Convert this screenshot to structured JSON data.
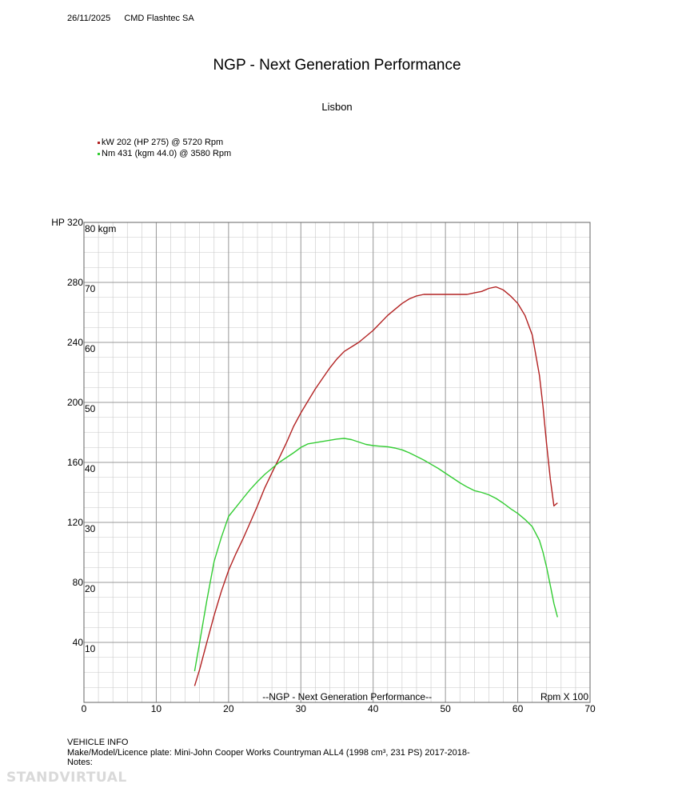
{
  "header": {
    "date": "26/11/2025",
    "company": "CMD Flashtec SA"
  },
  "colors": {
    "power": "#b22222",
    "torque": "#33cc33",
    "grid_major": "#999999",
    "grid_minor": "#c8c8c8"
  },
  "chart_data": {
    "type": "line",
    "title": "NGP - Next Generation Performance",
    "subtitle": "Lisbon",
    "legend": [
      {
        "text": "kW 202 (HP 275) @ 5720 Rpm",
        "color": "#b22222"
      },
      {
        "text": "Nm 431 (kgm 44.0) @ 3580 Rpm",
        "color": "#33cc33"
      }
    ],
    "xlabel": "Rpm X 100",
    "ylabel_left": "HP",
    "ylabel_right": "kgm",
    "watermark": "--NGP - Next Generation Performance--",
    "xlim": [
      0,
      70
    ],
    "xticks": [
      0,
      10,
      20,
      30,
      40,
      50,
      60,
      70
    ],
    "ylim_hp": [
      0,
      320
    ],
    "yticks_hp": [
      40,
      80,
      120,
      160,
      200,
      240,
      280,
      320
    ],
    "ylim_kgm": [
      0,
      80
    ],
    "yticks_kgm": [
      10,
      20,
      30,
      40,
      50,
      60,
      70,
      80
    ],
    "grid": true,
    "legend_position": "top-left",
    "series": [
      {
        "axis": "hp",
        "color": "#b22222",
        "x": [
          15.3,
          16,
          17,
          18,
          19,
          20,
          21,
          22,
          23,
          24,
          25,
          26,
          27,
          28,
          29,
          30,
          31,
          32,
          33,
          34,
          35,
          36,
          37,
          38,
          39,
          40,
          41,
          42,
          43,
          44,
          45,
          46,
          47,
          48,
          49,
          50,
          51,
          52,
          53,
          54,
          55,
          56,
          57,
          58,
          59,
          60,
          61,
          62,
          63,
          63.5,
          64,
          64.5,
          65,
          65.5
        ],
        "values": [
          11,
          22,
          40,
          58,
          74,
          88,
          99,
          109,
          120,
          131,
          143,
          153,
          163,
          173,
          184,
          193,
          201,
          209,
          216,
          223,
          229,
          234,
          237,
          240,
          244,
          248,
          253,
          258,
          262,
          266,
          269,
          271,
          272,
          272,
          272,
          272,
          272,
          272,
          272,
          273,
          274,
          276,
          277,
          275,
          271,
          266,
          258,
          245,
          218,
          197,
          172,
          149,
          131,
          133
        ]
      },
      {
        "axis": "kgm",
        "color": "#33cc33",
        "x": [
          15.3,
          16,
          17,
          18,
          19,
          20,
          21,
          22,
          23,
          24,
          25,
          26,
          27,
          28,
          29,
          30,
          31,
          32,
          33,
          34,
          35,
          36,
          37,
          38,
          39,
          40,
          41,
          42,
          43,
          44,
          45,
          46,
          47,
          48,
          49,
          50,
          51,
          52,
          53,
          54,
          55,
          56,
          57,
          58,
          59,
          60,
          61,
          62,
          63,
          63.5,
          64,
          64.5,
          65,
          65.5
        ],
        "values": [
          5.2,
          10,
          17,
          23.5,
          27.5,
          31,
          32.5,
          34,
          35.5,
          36.8,
          38,
          39,
          40,
          40.8,
          41.6,
          42.5,
          43.1,
          43.3,
          43.5,
          43.7,
          43.9,
          44,
          43.8,
          43.4,
          43.0,
          42.8,
          42.7,
          42.6,
          42.4,
          42.1,
          41.6,
          41.0,
          40.4,
          39.7,
          39.0,
          38.2,
          37.4,
          36.6,
          35.9,
          35.3,
          35.0,
          34.6,
          34.0,
          33.2,
          32.3,
          31.5,
          30.5,
          29.3,
          27.0,
          25.0,
          22.5,
          19.5,
          16.5,
          14.2
        ]
      }
    ]
  },
  "vehicle_info": {
    "heading": "VEHICLE INFO",
    "make": "Make/Model/Licence plate: Mini-John Cooper Works Countryman ALL4 (1998 cm³, 231 PS) 2017-2018-",
    "notes": "Notes:"
  },
  "site_watermark": "STANDVIRTUAL"
}
